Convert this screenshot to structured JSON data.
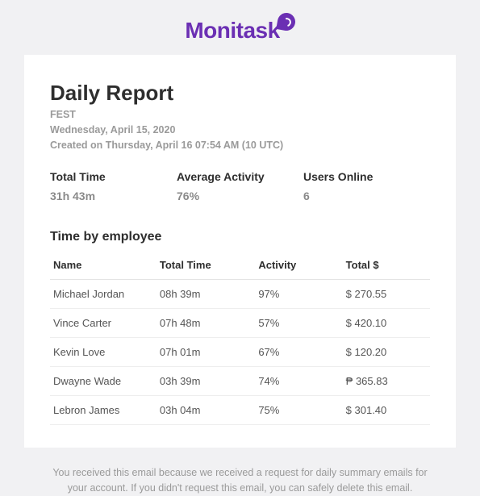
{
  "brand": {
    "name": "Monitask"
  },
  "report": {
    "title": "Daily Report",
    "org": "FEST",
    "date_line": "Wednesday, April 15, 2020",
    "created_line": "Created on Thursday, April 16 07:54 AM (10 UTC)"
  },
  "stats": {
    "total_time": {
      "label": "Total Time",
      "value": "31h 43m"
    },
    "avg_activity": {
      "label": "Average Activity",
      "value": "76%"
    },
    "users_online": {
      "label": "Users Online",
      "value": "6"
    }
  },
  "table": {
    "title": "Time by employee",
    "headers": {
      "name": "Name",
      "time": "Total Time",
      "activity": "Activity",
      "total": "Total $"
    },
    "rows": [
      {
        "name": "Michael Jordan",
        "time": "08h 39m",
        "activity": "97%",
        "total": "$ 270.55"
      },
      {
        "name": "Vince Carter",
        "time": "07h 48m",
        "activity": "57%",
        "total": "$ 420.10"
      },
      {
        "name": "Kevin Love",
        "time": "07h 01m",
        "activity": "67%",
        "total": "$ 120.20"
      },
      {
        "name": "Dwayne Wade",
        "time": "03h 39m",
        "activity": "74%",
        "total": "₱ 365.83"
      },
      {
        "name": "Lebron James",
        "time": "03h 04m",
        "activity": "75%",
        "total": "$ 301.40"
      }
    ]
  },
  "footer": {
    "text": "You received this email because we received a request for daily summary emails for your account. If you didn't request this email, you can safely delete this email."
  },
  "colors": {
    "brand": "#6b2fb3",
    "page_bg": "#f1f1f3",
    "card_bg": "#ffffff",
    "text_dark": "#2e2e2e",
    "text_muted": "#9a9a9a",
    "row_border": "#eeeeee"
  }
}
